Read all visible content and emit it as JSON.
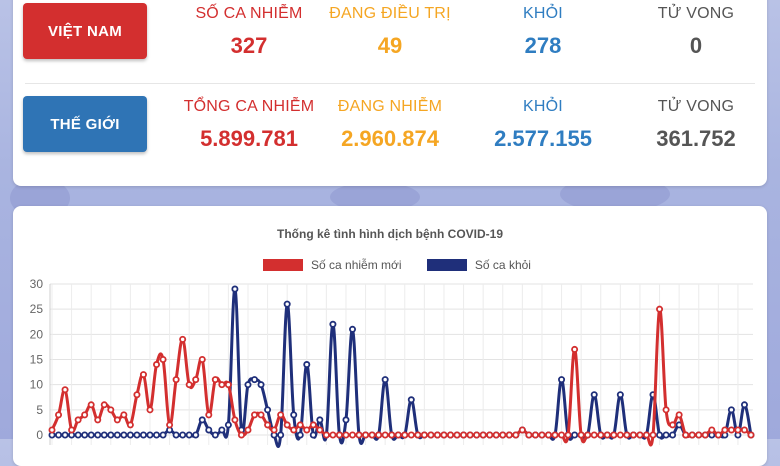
{
  "vietnam": {
    "region_label": "VIỆT NAM",
    "stats": [
      {
        "label": "SỐ CA NHIỄM",
        "value": "327",
        "color": "#d32f2f"
      },
      {
        "label": "ĐANG ĐIỀU TRỊ",
        "value": "49",
        "color": "#f5a623"
      },
      {
        "label": "KHỎI",
        "value": "278",
        "color": "#2f7dc1"
      },
      {
        "label": "TỬ VONG",
        "value": "0",
        "color": "#555555"
      }
    ]
  },
  "world": {
    "region_label": "THẾ GIỚI",
    "stats": [
      {
        "label": "TỔNG CA NHIỄM",
        "value": "5.899.781",
        "color": "#d32f2f"
      },
      {
        "label": "ĐANG NHIỄM",
        "value": "2.960.874",
        "color": "#f5a623"
      },
      {
        "label": "KHỎI",
        "value": "2.577.155",
        "color": "#2f7dc1"
      },
      {
        "label": "TỬ VONG",
        "value": "361.752",
        "color": "#555555"
      }
    ]
  },
  "colors": {
    "vn_button": "#d32f2f",
    "world_button": "#2f74b5",
    "new_cases": "#d32f2f",
    "recovered": "#1f2f7a"
  },
  "chart_data": {
    "type": "line",
    "title": "Thống kê tình hình dịch bệnh COVID-19",
    "ylim": [
      0,
      30
    ],
    "yticks": [
      0,
      5,
      10,
      15,
      20,
      25,
      30
    ],
    "grid": true,
    "legend_position": "top",
    "series": [
      {
        "name": "Số ca nhiễm mới",
        "color": "#d32f2f",
        "values": [
          1,
          4,
          9,
          1,
          3,
          4,
          6,
          3,
          6,
          5,
          3,
          4,
          2,
          8,
          12,
          5,
          14,
          15,
          2,
          11,
          19,
          10,
          11,
          15,
          4,
          11,
          10,
          10,
          3,
          0,
          1,
          4,
          4,
          2,
          1,
          4,
          2,
          1,
          2,
          1,
          2,
          1,
          0,
          0,
          0,
          0,
          0,
          0,
          0,
          0,
          0,
          0,
          0,
          0,
          0,
          0,
          0,
          0,
          0,
          0,
          0,
          0,
          0,
          0,
          0,
          0,
          0,
          0,
          0,
          0,
          0,
          0,
          1,
          0,
          0,
          0,
          0,
          0,
          0,
          0,
          17,
          0,
          0,
          0,
          0,
          0,
          0,
          0,
          0,
          0,
          0,
          0,
          0,
          25,
          5,
          2,
          4,
          0,
          0,
          0,
          0,
          1,
          0,
          1,
          1,
          1,
          1,
          0
        ]
      },
      {
        "name": "Số ca khỏi",
        "color": "#1f2f7a",
        "values": [
          0,
          0,
          0,
          0,
          0,
          0,
          0,
          0,
          0,
          0,
          0,
          0,
          0,
          0,
          0,
          0,
          0,
          0,
          1,
          0,
          0,
          0,
          0,
          3,
          1,
          0,
          1,
          2,
          29,
          1,
          10,
          11,
          10,
          5,
          0,
          0,
          26,
          4,
          0,
          14,
          0,
          3,
          0,
          22,
          0,
          3,
          21,
          0,
          0,
          0,
          0,
          11,
          0,
          0,
          0,
          7,
          0,
          0,
          0,
          0,
          0,
          0,
          0,
          0,
          0,
          0,
          0,
          0,
          0,
          0,
          0,
          0,
          1,
          0,
          0,
          0,
          0,
          0,
          11,
          0,
          0,
          0,
          0,
          8,
          0,
          0,
          0,
          8,
          0,
          0,
          0,
          0,
          8,
          0,
          0,
          0,
          2,
          0,
          0,
          0,
          0,
          0,
          0,
          0,
          5,
          0,
          6,
          0
        ]
      }
    ]
  }
}
